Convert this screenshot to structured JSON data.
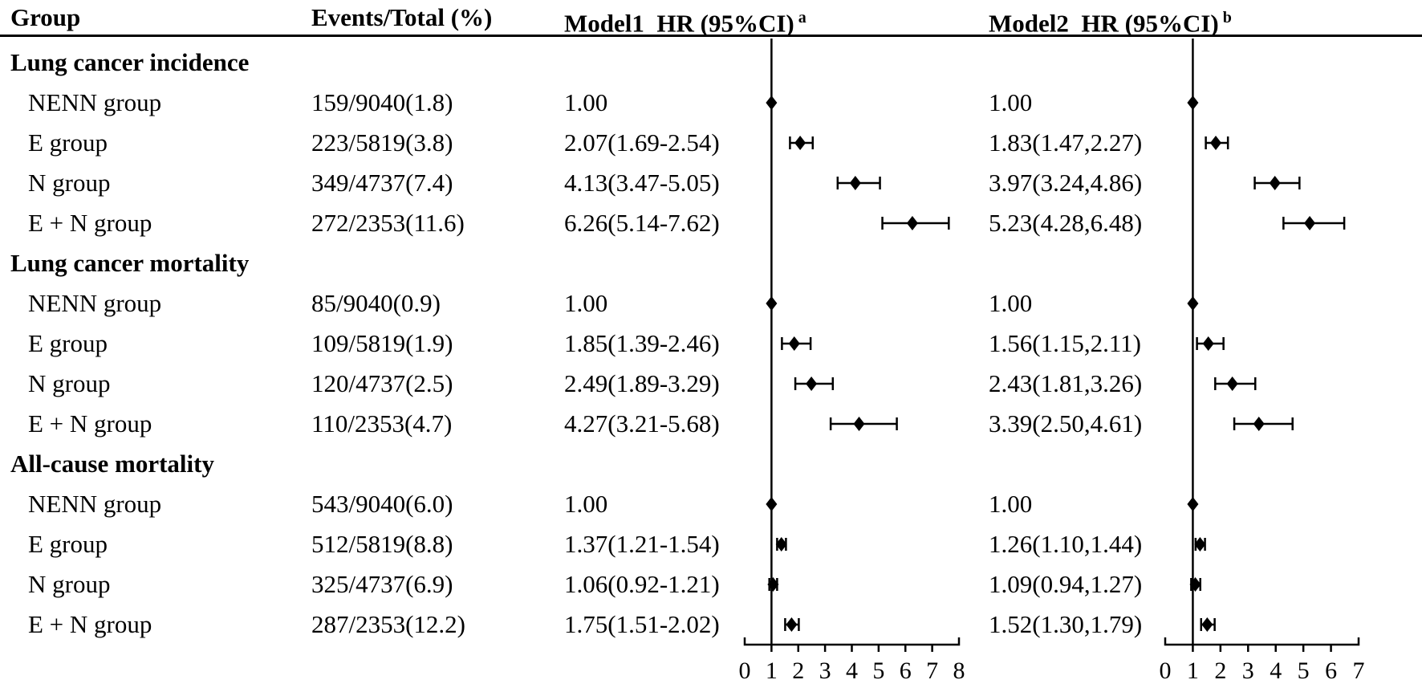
{
  "header": {
    "group": "Group",
    "events": "Events/Total (%)",
    "model1": "Model1  HR (95%CI)",
    "model1_sup": "a",
    "model2": "Model2  HR (95%CI)",
    "model2_sup": "b"
  },
  "chart_data": {
    "type": "forest",
    "description": "Forest plot of hazard ratios with 95% confidence intervals for two models across three outcomes",
    "reference_color": "#000000",
    "axes": {
      "model1": {
        "ticks": [
          0,
          1,
          2,
          3,
          4,
          5,
          6,
          7,
          8
        ],
        "range": [
          0,
          8
        ],
        "reference": 1
      },
      "model2": {
        "ticks": [
          0,
          1,
          2,
          3,
          4,
          5,
          6,
          7
        ],
        "range": [
          0,
          7
        ],
        "reference": 1
      }
    },
    "sections": [
      {
        "title": "Lung cancer incidence",
        "rows": [
          {
            "group": "NENN group",
            "events": "159/9040(1.8)",
            "model1": {
              "text": "1.00",
              "hr": 1
            },
            "model2": {
              "text": "1.00",
              "hr": 1
            }
          },
          {
            "group": "E group",
            "events": "223/5819(3.8)",
            "model1": {
              "text": "2.07(1.69-2.54)",
              "hr": 2.07,
              "lo": 1.69,
              "hi": 2.54
            },
            "model2": {
              "text": "1.83(1.47,2.27)",
              "hr": 1.83,
              "lo": 1.47,
              "hi": 2.27
            }
          },
          {
            "group": "N group",
            "events": "349/4737(7.4)",
            "model1": {
              "text": "4.13(3.47-5.05)",
              "hr": 4.13,
              "lo": 3.47,
              "hi": 5.05
            },
            "model2": {
              "text": "3.97(3.24,4.86)",
              "hr": 3.97,
              "lo": 3.24,
              "hi": 4.86
            }
          },
          {
            "group": "E + N group",
            "events": "272/2353(11.6)",
            "model1": {
              "text": "6.26(5.14-7.62)",
              "hr": 6.26,
              "lo": 5.14,
              "hi": 7.62
            },
            "model2": {
              "text": "5.23(4.28,6.48)",
              "hr": 5.23,
              "lo": 4.28,
              "hi": 6.48
            }
          }
        ]
      },
      {
        "title": "Lung cancer mortality",
        "rows": [
          {
            "group": "NENN group",
            "events": "85/9040(0.9)",
            "model1": {
              "text": "1.00",
              "hr": 1
            },
            "model2": {
              "text": "1.00",
              "hr": 1
            }
          },
          {
            "group": "E group",
            "events": "109/5819(1.9)",
            "model1": {
              "text": "1.85(1.39-2.46)",
              "hr": 1.85,
              "lo": 1.39,
              "hi": 2.46
            },
            "model2": {
              "text": "1.56(1.15,2.11)",
              "hr": 1.56,
              "lo": 1.15,
              "hi": 2.11
            }
          },
          {
            "group": "N group",
            "events": "120/4737(2.5)",
            "model1": {
              "text": "2.49(1.89-3.29)",
              "hr": 2.49,
              "lo": 1.89,
              "hi": 3.29
            },
            "model2": {
              "text": "2.43(1.81,3.26)",
              "hr": 2.43,
              "lo": 1.81,
              "hi": 3.26
            }
          },
          {
            "group": "E + N group",
            "events": "110/2353(4.7)",
            "model1": {
              "text": "4.27(3.21-5.68)",
              "hr": 4.27,
              "lo": 3.21,
              "hi": 5.68
            },
            "model2": {
              "text": "3.39(2.50,4.61)",
              "hr": 3.39,
              "lo": 2.5,
              "hi": 4.61
            }
          }
        ]
      },
      {
        "title": "All-cause mortality",
        "rows": [
          {
            "group": "NENN group",
            "events": "543/9040(6.0)",
            "model1": {
              "text": "1.00",
              "hr": 1
            },
            "model2": {
              "text": "1.00",
              "hr": 1
            }
          },
          {
            "group": "E group",
            "events": "512/5819(8.8)",
            "model1": {
              "text": "1.37(1.21-1.54)",
              "hr": 1.37,
              "lo": 1.21,
              "hi": 1.54
            },
            "model2": {
              "text": "1.26(1.10,1.44)",
              "hr": 1.26,
              "lo": 1.1,
              "hi": 1.44
            }
          },
          {
            "group": "N group",
            "events": "325/4737(6.9)",
            "model1": {
              "text": "1.06(0.92-1.21)",
              "hr": 1.06,
              "lo": 0.92,
              "hi": 1.21
            },
            "model2": {
              "text": "1.09(0.94,1.27)",
              "hr": 1.09,
              "lo": 0.94,
              "hi": 1.27
            }
          },
          {
            "group": "E + N group",
            "events": "287/2353(12.2)",
            "model1": {
              "text": "1.75(1.51-2.02)",
              "hr": 1.75,
              "lo": 1.51,
              "hi": 2.02
            },
            "model2": {
              "text": "1.52(1.30,1.79)",
              "hr": 1.52,
              "lo": 1.3,
              "hi": 1.79
            }
          }
        ]
      }
    ]
  }
}
